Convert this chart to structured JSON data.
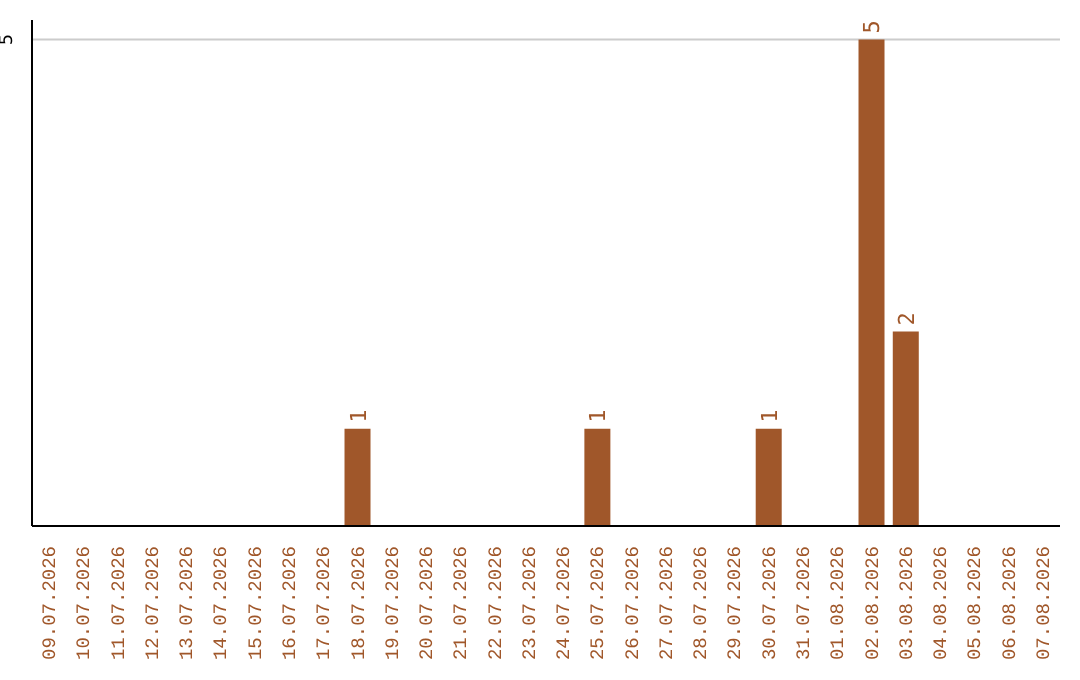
{
  "chart_data": {
    "type": "bar",
    "categories": [
      "09.07.2026",
      "10.07.2026",
      "11.07.2026",
      "12.07.2026",
      "13.07.2026",
      "14.07.2026",
      "15.07.2026",
      "16.07.2026",
      "17.07.2026",
      "18.07.2026",
      "19.07.2026",
      "20.07.2026",
      "21.07.2026",
      "22.07.2026",
      "23.07.2026",
      "24.07.2026",
      "25.07.2026",
      "26.07.2026",
      "27.07.2026",
      "28.07.2026",
      "29.07.2026",
      "30.07.2026",
      "31.07.2026",
      "01.08.2026",
      "02.08.2026",
      "03.08.2026",
      "04.08.2026",
      "05.08.2026",
      "06.08.2026",
      "07.08.2026"
    ],
    "values": [
      0,
      0,
      0,
      0,
      0,
      0,
      0,
      0,
      0,
      1,
      0,
      0,
      0,
      0,
      0,
      0,
      1,
      0,
      0,
      0,
      0,
      1,
      0,
      0,
      5,
      2,
      0,
      0,
      0,
      0
    ],
    "value_labels": [
      null,
      null,
      null,
      null,
      null,
      null,
      null,
      null,
      null,
      "1",
      null,
      null,
      null,
      null,
      null,
      null,
      "1",
      null,
      null,
      null,
      null,
      "1",
      null,
      null,
      "5",
      "2",
      null,
      null,
      null,
      null
    ],
    "color": "#a0572a",
    "ylim": [
      0,
      5.2
    ],
    "yticks": [
      5
    ],
    "grid": "y"
  }
}
